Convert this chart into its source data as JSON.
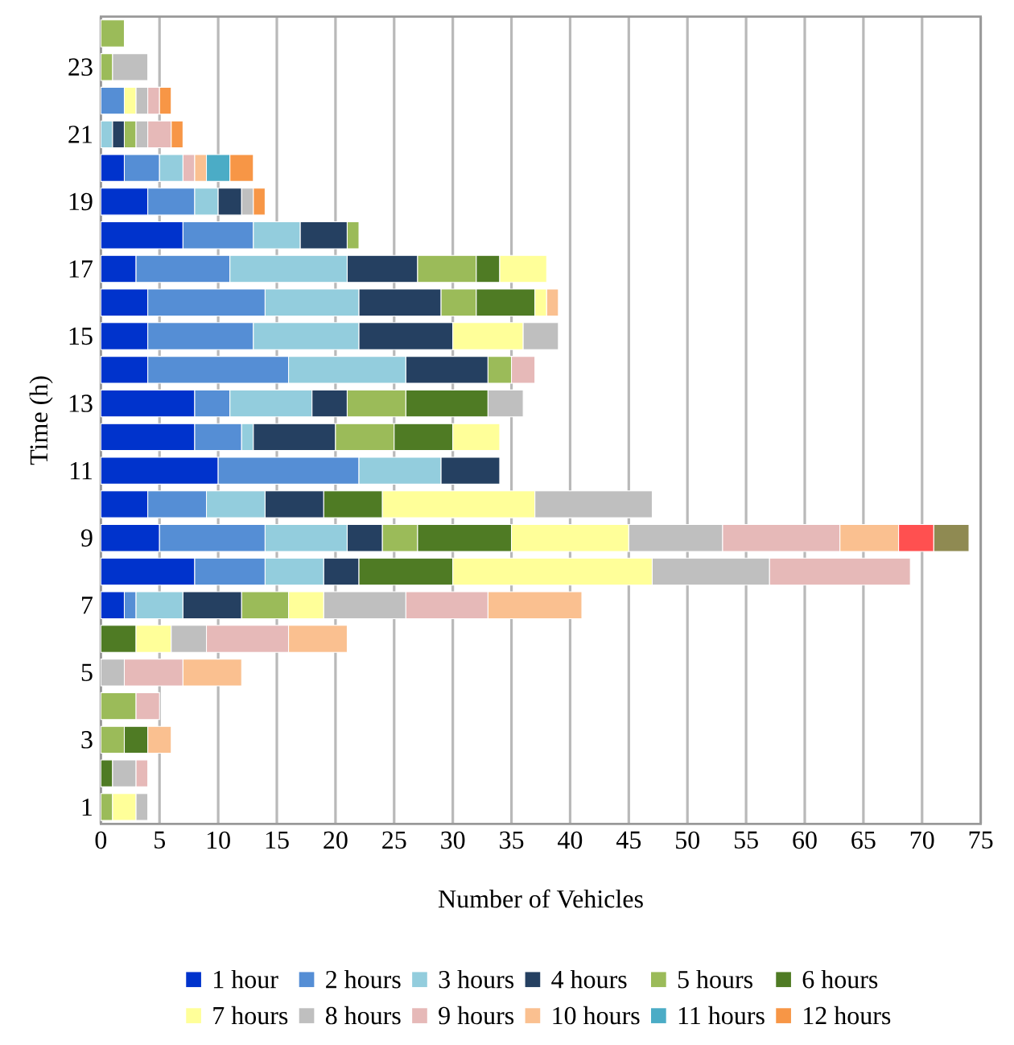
{
  "chart_data": {
    "type": "bar",
    "orientation": "horizontal",
    "stacked": true,
    "ylabel": "Time (h)",
    "xlabel": "Number of Vehicles",
    "categories": [
      null,
      "23",
      null,
      "21",
      null,
      "19",
      null,
      "17",
      null,
      "15",
      null,
      "13",
      null,
      "11",
      null,
      "9",
      null,
      "7",
      null,
      "5",
      null,
      "3",
      null,
      "1"
    ],
    "xlim": [
      0,
      75
    ],
    "xticks": [
      0,
      5,
      10,
      15,
      20,
      25,
      30,
      35,
      40,
      45,
      50,
      55,
      60,
      65,
      70,
      75
    ],
    "grid": "x",
    "legend": "bottom",
    "series": [
      {
        "name": "1 hour",
        "color": "#0033cc",
        "values": [
          null,
          null,
          null,
          null,
          2,
          4,
          7,
          3,
          4,
          4,
          4,
          8,
          8,
          10,
          4,
          5,
          8,
          2,
          null,
          null,
          null,
          null,
          null,
          null
        ]
      },
      {
        "name": "2 hours",
        "color": "#558ed5",
        "values": [
          null,
          null,
          2,
          null,
          3,
          4,
          6,
          8,
          10,
          9,
          12,
          3,
          4,
          12,
          5,
          9,
          6,
          1,
          null,
          null,
          null,
          null,
          null,
          null
        ]
      },
      {
        "name": "3 hours",
        "color": "#93cddd",
        "values": [
          null,
          null,
          null,
          1,
          2,
          2,
          4,
          10,
          8,
          9,
          10,
          7,
          1,
          7,
          5,
          7,
          5,
          4,
          null,
          null,
          null,
          null,
          null,
          null
        ]
      },
      {
        "name": "4 hours",
        "color": "#254061",
        "values": [
          null,
          null,
          null,
          1,
          null,
          2,
          4,
          6,
          7,
          8,
          7,
          3,
          7,
          5,
          5,
          3,
          3,
          5,
          null,
          null,
          null,
          null,
          null,
          null
        ]
      },
      {
        "name": "5 hours",
        "color": "#9bbb59",
        "values": [
          2,
          1,
          null,
          1,
          null,
          null,
          1,
          5,
          3,
          null,
          2,
          5,
          5,
          null,
          null,
          3,
          null,
          4,
          null,
          null,
          3,
          2,
          null,
          1
        ]
      },
      {
        "name": "6 hours",
        "color": "#4f7b24",
        "values": [
          null,
          null,
          null,
          null,
          null,
          null,
          null,
          2,
          5,
          null,
          null,
          7,
          5,
          null,
          5,
          8,
          8,
          null,
          3,
          null,
          null,
          2,
          1,
          null
        ]
      },
      {
        "name": "7 hours",
        "color": "#ffff99",
        "values": [
          null,
          null,
          1,
          null,
          null,
          null,
          null,
          4,
          1,
          6,
          null,
          null,
          4,
          null,
          13,
          10,
          17,
          3,
          3,
          null,
          null,
          null,
          null,
          2
        ]
      },
      {
        "name": "8 hours",
        "color": "#bfbfbf",
        "values": [
          null,
          3,
          1,
          1,
          null,
          1,
          null,
          null,
          null,
          3,
          null,
          3,
          null,
          null,
          10,
          8,
          10,
          7,
          3,
          2,
          null,
          null,
          2,
          1
        ]
      },
      {
        "name": "9 hours",
        "color": "#e6b9b8",
        "values": [
          null,
          null,
          1,
          2,
          1,
          null,
          null,
          null,
          null,
          null,
          2,
          null,
          null,
          null,
          null,
          10,
          12,
          7,
          7,
          5,
          2,
          null,
          1,
          null
        ]
      },
      {
        "name": "10 hours",
        "color": "#fac090",
        "values": [
          null,
          null,
          null,
          null,
          1,
          null,
          null,
          null,
          1,
          null,
          null,
          null,
          null,
          null,
          null,
          5,
          null,
          8,
          5,
          5,
          null,
          2,
          null,
          null
        ]
      },
      {
        "name": "11 hours",
        "color": "#4bacc6",
        "values": [
          null,
          null,
          null,
          null,
          2,
          null,
          null,
          null,
          null,
          null,
          null,
          null,
          null,
          null,
          null,
          null,
          null,
          null,
          null,
          null,
          null,
          null,
          null,
          null
        ]
      },
      {
        "name": "12 hours",
        "color": "#f79646",
        "values": [
          null,
          null,
          1,
          1,
          2,
          1,
          null,
          null,
          null,
          null,
          null,
          null,
          null,
          null,
          null,
          null,
          null,
          null,
          null,
          null,
          null,
          null,
          null,
          null
        ]
      },
      {
        "color": "#ff5050",
        "values": [
          null,
          null,
          null,
          null,
          null,
          null,
          null,
          null,
          null,
          null,
          null,
          null,
          null,
          null,
          null,
          3,
          null,
          null,
          null,
          null,
          null,
          null,
          null,
          null
        ]
      },
      {
        "color": "#8f8a52",
        "values": [
          null,
          null,
          null,
          null,
          null,
          null,
          null,
          null,
          null,
          null,
          null,
          null,
          null,
          null,
          null,
          3,
          null,
          null,
          null,
          null,
          null,
          null,
          null,
          null
        ]
      }
    ]
  }
}
